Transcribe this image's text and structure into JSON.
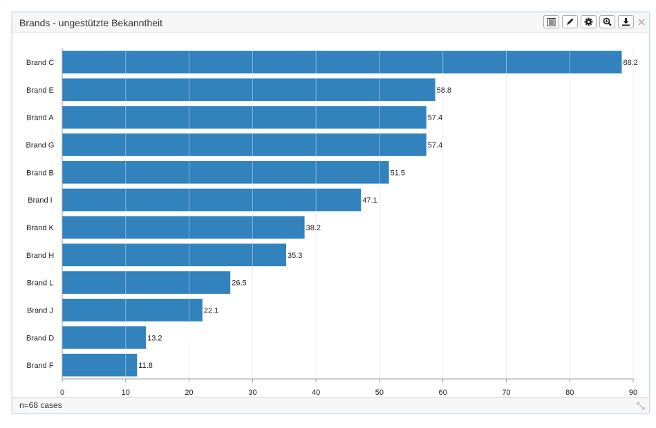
{
  "panel": {
    "title": "Brands - ungestützte Bekanntheit",
    "footer": "n=68 cases",
    "toolbar": [
      {
        "name": "table-view-button",
        "icon": "table-icon"
      },
      {
        "name": "edit-button",
        "icon": "pencil-icon"
      },
      {
        "name": "settings-button",
        "icon": "gear-icon"
      },
      {
        "name": "zoom-button",
        "icon": "zoom-icon"
      },
      {
        "name": "download-button",
        "icon": "download-icon"
      }
    ],
    "close_icon": "close-icon",
    "resize_icon": "resize-icon"
  },
  "colors": {
    "bar": "#3182bd",
    "gridline": "#d9e6f0",
    "axis": "#999999",
    "text": "#222222"
  },
  "chart_data": {
    "type": "bar",
    "orientation": "horizontal",
    "title": "",
    "xlabel": "",
    "ylabel": "",
    "categories": [
      "Brand C",
      "Brand E",
      "Brand A",
      "Brand G",
      "Brand B",
      "Brand I",
      "Brand K",
      "Brand H",
      "Brand L",
      "Brand J",
      "Brand D",
      "Brand F"
    ],
    "values": [
      88.2,
      58.8,
      57.4,
      57.4,
      51.5,
      47.1,
      38.2,
      35.3,
      26.5,
      22.1,
      13.2,
      11.8
    ],
    "xlim": [
      0,
      90
    ],
    "xticks": [
      0,
      10,
      20,
      30,
      40,
      50,
      60,
      70,
      80,
      90
    ],
    "grid": true,
    "legend": "none",
    "data_labels": true
  }
}
